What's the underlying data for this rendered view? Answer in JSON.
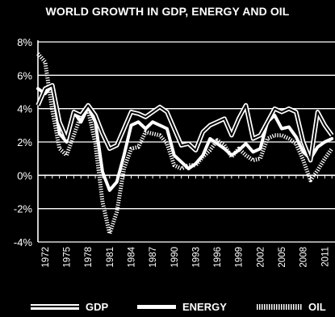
{
  "chart_data": {
    "type": "line",
    "title": "WORLD GROWTH IN GDP, ENERGY AND OIL",
    "xlabel": "",
    "ylabel": "",
    "x": [
      1971,
      1972,
      1973,
      1974,
      1975,
      1976,
      1977,
      1978,
      1979,
      1980,
      1981,
      1982,
      1983,
      1984,
      1985,
      1986,
      1987,
      1988,
      1989,
      1990,
      1991,
      1992,
      1993,
      1994,
      1995,
      1996,
      1997,
      1998,
      1999,
      2000,
      2001,
      2002,
      2003,
      2004,
      2005,
      2006,
      2007,
      2008,
      2009,
      2010,
      2011,
      2012
    ],
    "xticks": [
      "1972",
      "1975",
      "1978",
      "1981",
      "1984",
      "1987",
      "1990",
      "1993",
      "1996",
      "1999",
      "2002",
      "2005",
      "2008",
      "2011"
    ],
    "yticks": [
      "8%",
      "6%",
      "4%",
      "2%",
      "0%",
      "-2%",
      "-4%"
    ],
    "ylim": [
      -4,
      8
    ],
    "grid": "horizontal",
    "legend_position": "bottom",
    "series": [
      {
        "name": "GDP",
        "style": "double",
        "values": [
          4.2,
          5.2,
          5.4,
          3.2,
          2.2,
          3.8,
          3.6,
          4.2,
          3.6,
          2.5,
          1.6,
          1.8,
          2.8,
          3.8,
          3.7,
          3.5,
          3.8,
          4.1,
          3.8,
          2.8,
          1.8,
          1.9,
          1.5,
          2.6,
          3.0,
          3.2,
          3.4,
          2.4,
          3.4,
          4.2,
          2.2,
          2.4,
          3.2,
          4.0,
          3.8,
          4.0,
          3.8,
          2.0,
          0.9,
          3.8,
          3.0,
          2.4
        ]
      },
      {
        "name": "ENERGY",
        "style": "solid",
        "values": [
          5.2,
          4.9,
          5.4,
          2.5,
          2.0,
          3.8,
          3.2,
          4.1,
          3.2,
          0.2,
          -0.9,
          -0.4,
          1.2,
          3.0,
          3.2,
          2.8,
          3.2,
          3.0,
          2.8,
          1.2,
          0.8,
          0.4,
          0.7,
          1.2,
          2.2,
          1.9,
          1.6,
          1.2,
          1.5,
          1.9,
          1.4,
          1.6,
          3.2,
          3.6,
          2.8,
          2.9,
          2.3,
          1.4,
          1.0,
          1.7,
          2.0,
          2.2
        ]
      },
      {
        "name": "OIL",
        "style": "dotted",
        "values": [
          7.3,
          6.8,
          3.9,
          1.6,
          1.2,
          2.4,
          3.6,
          3.9,
          1.9,
          -1.6,
          -3.5,
          -2.2,
          0.4,
          1.6,
          1.7,
          2.6,
          2.5,
          2.4,
          1.9,
          0.6,
          0.4,
          0.6,
          0.6,
          1.1,
          1.5,
          2.1,
          1.8,
          1.1,
          1.6,
          1.2,
          0.9,
          1.0,
          2.2,
          2.4,
          2.4,
          2.2,
          1.9,
          0.9,
          -0.3,
          0.3,
          1.0,
          1.6
        ]
      }
    ]
  },
  "colors": {
    "background": "#000000",
    "lines": "#ffffff"
  }
}
